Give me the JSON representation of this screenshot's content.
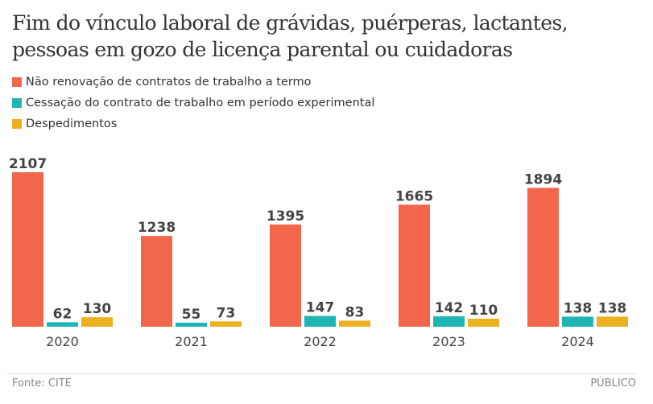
{
  "chart_data": {
    "type": "bar",
    "title": "Fim do vínculo laboral de grávidas, puérperas, lactantes, pessoas em gozo de licença parental ou cuidadoras",
    "categories": [
      "2020",
      "2021",
      "2022",
      "2023",
      "2024"
    ],
    "series": [
      {
        "name": "Não renovação de contratos de trabalho a termo",
        "color": "#f2674b",
        "values": [
          2107,
          1238,
          1395,
          1665,
          1894
        ]
      },
      {
        "name": "Cessação do contrato de trabalho em período experimental",
        "color": "#1fb5b5",
        "values": [
          62,
          55,
          147,
          142,
          138
        ]
      },
      {
        "name": "Despedimentos",
        "color": "#ebb121",
        "values": [
          130,
          73,
          83,
          110,
          138
        ]
      }
    ],
    "legend": "top-left",
    "grid": false,
    "ylim": [
      0,
      2107
    ]
  },
  "footer": {
    "source": "Fonte: CITE",
    "brand": "PÚBLICO"
  }
}
